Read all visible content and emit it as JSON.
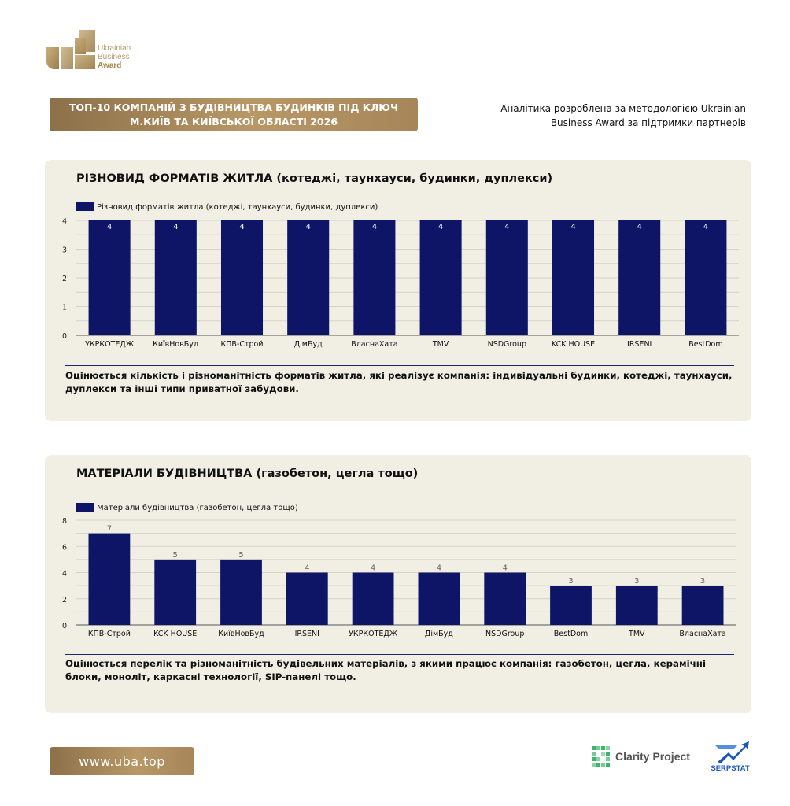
{
  "brand": {
    "logo_lines": [
      "Ukrainian",
      "Business",
      "Award"
    ],
    "colors": {
      "gold": "#b39563",
      "navy": "#0f1566",
      "card_bg": "#f1eee4"
    }
  },
  "header": {
    "title": "ТОП-10 КОМПАНІЙ З БУДІВНИЦТВА БУДИНКІВ ПІД КЛЮЧ М.КИЇВ ТА КИЇВСЬКОЇ ОБЛАСТІ 2026",
    "analytics_note": "Аналітика розроблена за методологією Ukrainian Business Award за підтримки партнерів"
  },
  "chart_data": [
    {
      "type": "bar",
      "title": "РІЗНОВИД ФОРМАТІВ ЖИТЛА (котеджі, таунхауси, будинки, дуплекси)",
      "legend": "Різновид форматів житла (котеджі, таунхауси, будинки, дуплекси)",
      "categories": [
        "УКРКОТЕДЖ",
        "КиївНовБуд",
        "КПВ-Строй",
        "ДімБуд",
        "ВласнаХата",
        "TMV",
        "NSDGroup",
        "KCK HOUSE",
        "IRSENI",
        "BestDom"
      ],
      "values": [
        4,
        4,
        4,
        4,
        4,
        4,
        4,
        4,
        4,
        4
      ],
      "ylim": [
        0,
        4
      ],
      "yticks": [
        0,
        1,
        2,
        3,
        4
      ],
      "description": "Оцінюється кількість і різноманітність форматів житла, які реалізує компанія: індивідуальні будинки, котеджі, таунхауси, дуплекси та інші типи приватної забудови."
    },
    {
      "type": "bar",
      "title": "МАТЕРІАЛИ БУДІВНИЦТВА (газобетон, цегла тощо)",
      "legend": "Матеріали будівництва (газобетон, цегла тощо)",
      "categories": [
        "КПВ-Строй",
        "KCK HOUSE",
        "КиївНовБуд",
        "IRSENI",
        "УКРКОТЕДЖ",
        "ДімБуд",
        "NSDGroup",
        "BestDom",
        "TMV",
        "ВласнаХата"
      ],
      "values": [
        7,
        5,
        5,
        4,
        4,
        4,
        4,
        3,
        3,
        3
      ],
      "ylim": [
        0,
        8
      ],
      "yticks": [
        0,
        2,
        4,
        6,
        8
      ],
      "description": "Оцінюється перелік та різноманітність будівельних матеріалів, з якими працює компанія: газобетон, цегла, керамічні блоки, моноліт, каркасні технології, SIP-панелі тощо."
    }
  ],
  "footer": {
    "site": "www.uba.top",
    "partners": [
      "Clarity Project",
      "SERPSTAT"
    ]
  }
}
